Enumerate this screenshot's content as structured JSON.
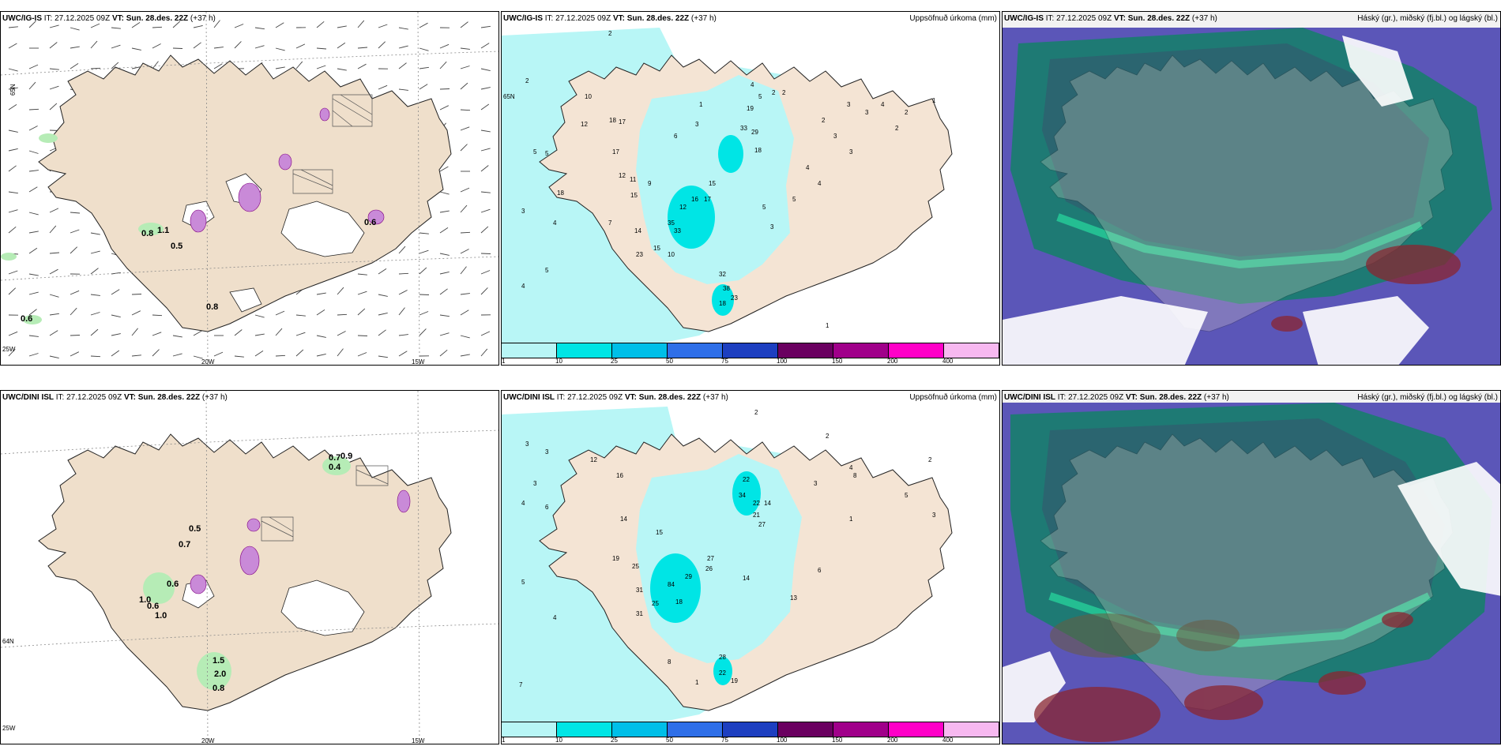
{
  "model_row1": "UWC/IG-IS",
  "model_row2": "UWC/DINI ISL",
  "it_label": "IT:",
  "it_value": "27.12.2025 09Z",
  "vt_label": "VT:",
  "vt_value": "Sun. 28.des. 22Z",
  "lead": "(+37 h)",
  "precip_title": "Uppsöfnuð úrkoma (mm)",
  "cloud_title": "Háský (gr.), miðský (fj.bl.) og lágský (bl.)",
  "lon_labels": [
    "20W",
    "15W"
  ],
  "lat_labels": [
    "65N",
    "64N",
    "25W"
  ],
  "colorbar": {
    "ticks": [
      "1",
      "10",
      "25",
      "50",
      "75",
      "100",
      "150",
      "200",
      "400"
    ],
    "colors": [
      "#b8f6f6",
      "#00e5e5",
      "#00bfe8",
      "#2f6fe8",
      "#1d3fc0",
      "#6a0060",
      "#a0008a",
      "#ff00c8",
      "#f7b8f0"
    ]
  },
  "wind_row1_labels": [
    "0.8",
    "1.1",
    "0.5",
    "0.8",
    "0.6",
    "0.6"
  ],
  "wind_row2_labels": [
    "0.5",
    "0.7",
    "0.6",
    "1.0",
    "0.6",
    "1.0",
    "0.7",
    "0.9",
    "0.4",
    "1.5",
    "2.0",
    "0.8"
  ],
  "precip_row1_labels": [
    "2",
    "2",
    "5",
    "5",
    "3",
    "4",
    "5",
    "4",
    "10",
    "12",
    "18",
    "17",
    "12",
    "11",
    "18",
    "17",
    "15",
    "9",
    "7",
    "14",
    "35",
    "33",
    "23",
    "15",
    "10",
    "12",
    "19",
    "33",
    "29",
    "18",
    "15",
    "17",
    "16",
    "6",
    "3",
    "1",
    "4",
    "5",
    "2",
    "2",
    "3",
    "3",
    "4",
    "2",
    "2",
    "1",
    "32",
    "38",
    "18",
    "23",
    "4",
    "3",
    "5",
    "2",
    "3",
    "3",
    "4",
    "5",
    "1"
  ],
  "precip_row2_labels": [
    "3",
    "3",
    "3",
    "4",
    "6",
    "12",
    "16",
    "14",
    "19",
    "25",
    "15",
    "31",
    "31",
    "25",
    "18",
    "84",
    "29",
    "27",
    "26",
    "22",
    "34",
    "22",
    "14",
    "21",
    "27",
    "14",
    "13",
    "28",
    "22",
    "19",
    "5",
    "4",
    "7",
    "8",
    "1",
    "1",
    "2",
    "4",
    "2",
    "3",
    "5",
    "3",
    "2",
    "6",
    "8",
    "1"
  ]
}
